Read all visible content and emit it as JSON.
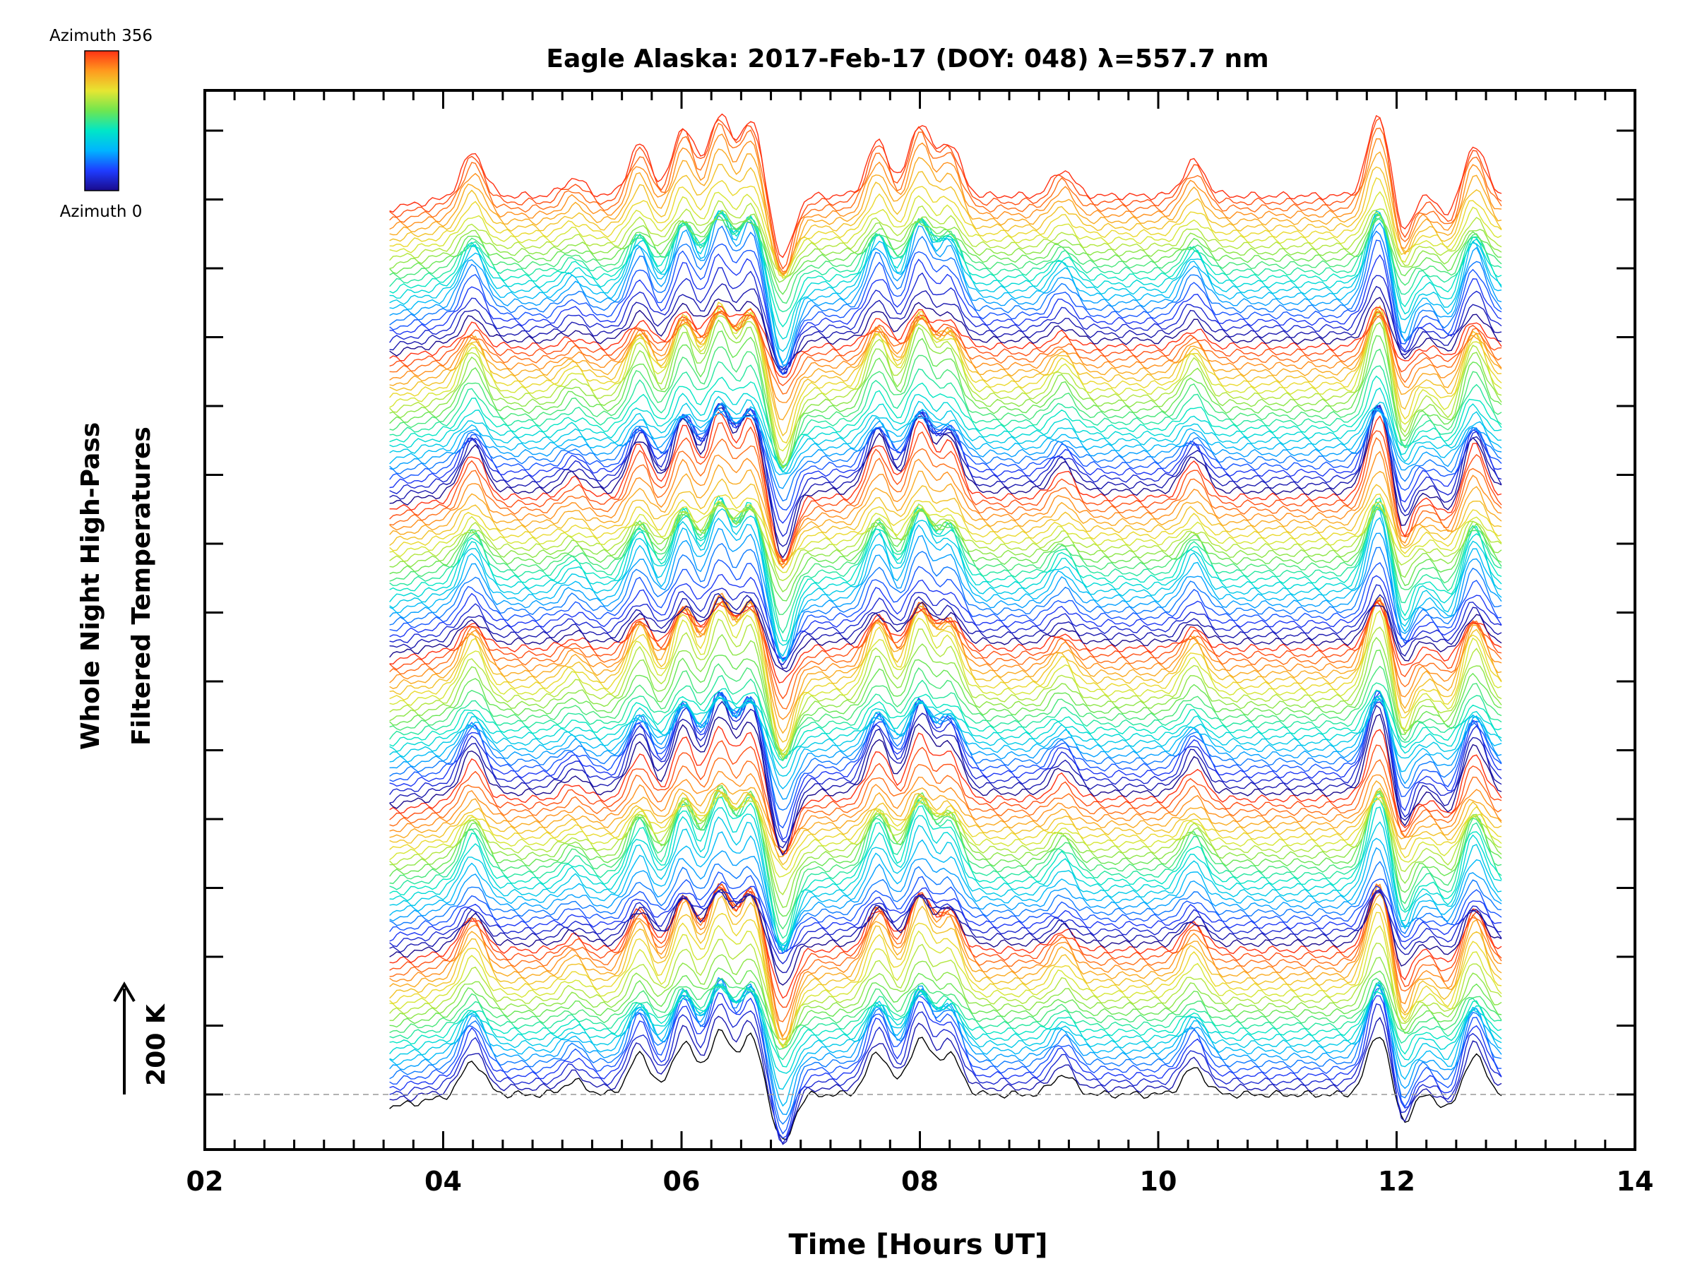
{
  "chart_data": {
    "type": "line",
    "title": "Eagle Alaska: 2017-Feb-17 (DOY: 048) λ=557.7 nm",
    "xlabel": "Time [Hours UT]",
    "ylabel_line1": "Whole Night High-Pass",
    "ylabel_line2": "Filtered Temperatures",
    "xlim": [
      2,
      14
    ],
    "x_tick_labels": [
      "02",
      "04",
      "06",
      "08",
      "10",
      "12",
      "14"
    ],
    "x_ticks": [
      2,
      4,
      6,
      8,
      10,
      12,
      14
    ],
    "data_range_hours": [
      3.55,
      12.9
    ],
    "scale_bar_label": "200 K",
    "colorbar": {
      "top_label": "Azimuth 356",
      "bottom_label": "Azimuth 0",
      "colors": [
        "#1a0a8c",
        "#1e3cff",
        "#00b4ff",
        "#00e6c8",
        "#6ee650",
        "#e6e632",
        "#ff9a1e",
        "#ff3214"
      ]
    },
    "series_count": 144,
    "series_note_hidden": "stacked azimuth profiles",
    "feature_peaks": [
      {
        "x": 4.25,
        "amp": 0.75
      },
      {
        "x": 5.1,
        "amp": 0.3
      },
      {
        "x": 5.65,
        "amp": 0.9
      },
      {
        "x": 6.02,
        "amp": 1.2
      },
      {
        "x": 6.32,
        "amp": 1.4
      },
      {
        "x": 6.58,
        "amp": 1.3
      },
      {
        "x": 7.65,
        "amp": 0.95
      },
      {
        "x": 8.0,
        "amp": 1.25
      },
      {
        "x": 8.25,
        "amp": 0.9
      },
      {
        "x": 9.2,
        "amp": 0.45
      },
      {
        "x": 10.3,
        "amp": 0.6
      },
      {
        "x": 11.85,
        "amp": 1.4
      },
      {
        "x": 12.65,
        "amp": 0.9
      }
    ]
  }
}
